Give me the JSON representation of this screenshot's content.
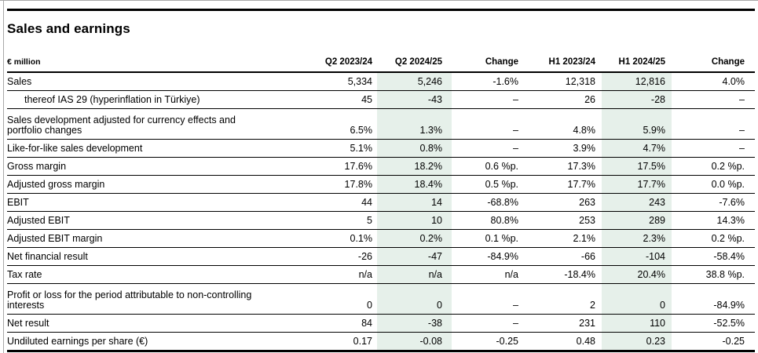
{
  "title": "Sales and earnings",
  "highlight_color": "#e6f0ea",
  "table": {
    "unit_label": "€ million",
    "columns": [
      "Q2 2023/24",
      "Q2 2024/25",
      "Change",
      "H1 2023/24",
      "H1 2024/25",
      "Change"
    ],
    "highlighted_columns": [
      "Q2 2024/25",
      "H1 2024/25"
    ],
    "rows": [
      {
        "label": "Sales",
        "values": [
          "5,334",
          "5,246",
          "-1.6%",
          "12,318",
          "12,816",
          "4.0%"
        ]
      },
      {
        "label": "thereof IAS 29 (hyperinflation in Türkiye)",
        "indent": true,
        "values": [
          "45",
          "-43",
          "–",
          "26",
          "-28",
          "–"
        ]
      },
      {
        "label": "Sales development adjusted for currency effects and\nportfolio changes",
        "twoline": true,
        "values": [
          "6.5%",
          "1.3%",
          "–",
          "4.8%",
          "5.9%",
          "–"
        ]
      },
      {
        "label": "Like-for-like sales development",
        "values": [
          "5.1%",
          "0.8%",
          "–",
          "3.9%",
          "4.7%",
          "–"
        ]
      },
      {
        "label": "Gross margin",
        "values": [
          "17.6%",
          "18.2%",
          "0.6 %p.",
          "17.3%",
          "17.5%",
          "0.2 %p."
        ]
      },
      {
        "label": "Adjusted gross margin",
        "values": [
          "17.8%",
          "18.4%",
          "0.5 %p.",
          "17.7%",
          "17.7%",
          "0.0 %p."
        ]
      },
      {
        "label": "EBIT",
        "values": [
          "44",
          "14",
          "-68.8%",
          "263",
          "243",
          "-7.6%"
        ]
      },
      {
        "label": "Adjusted EBIT",
        "values": [
          "5",
          "10",
          "80.8%",
          "253",
          "289",
          "14.3%"
        ]
      },
      {
        "label": "Adjusted EBIT margin",
        "values": [
          "0.1%",
          "0.2%",
          "0.1 %p.",
          "2.1%",
          "2.3%",
          "0.2 %p."
        ]
      },
      {
        "label": "Net financial result",
        "values": [
          "-26",
          "-47",
          "-84.9%",
          "-66",
          "-104",
          "-58.4%"
        ]
      },
      {
        "label": "Tax rate",
        "values": [
          "n/a",
          "n/a",
          "n/a",
          "-18.4%",
          "20.4%",
          "38.8 %p."
        ]
      },
      {
        "label": "Profit or loss for the period attributable to non-controlling\ninterests",
        "twoline": true,
        "values": [
          "0",
          "0",
          "–",
          "2",
          "0",
          "-84.9%"
        ]
      },
      {
        "label": "Net result",
        "values": [
          "84",
          "-38",
          "–",
          "231",
          "110",
          "-52.5%"
        ]
      },
      {
        "label": "Undiluted earnings per share (€)",
        "values": [
          "0.17",
          "-0.08",
          "-0.25",
          "0.48",
          "0.23",
          "-0.25"
        ]
      }
    ]
  }
}
